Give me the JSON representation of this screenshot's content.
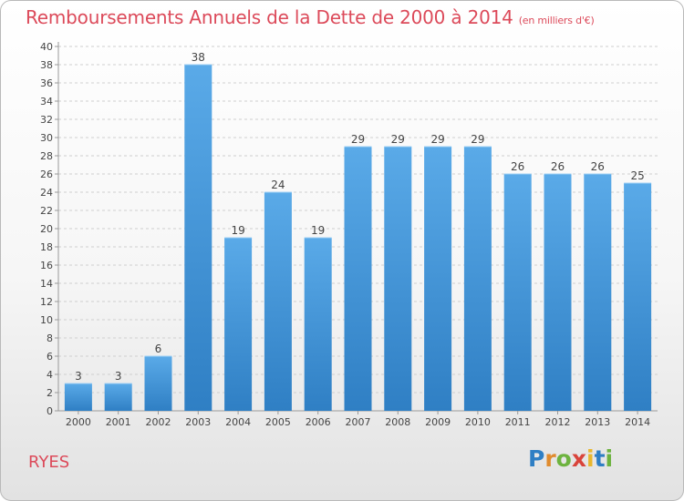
{
  "header": {
    "title": "Remboursements Annuels de la Dette de 2000 à 2014",
    "unit": "(en milliers d'€)"
  },
  "footer": {
    "commune": "RYES",
    "logo": [
      "P",
      "r",
      "o",
      "x",
      "i",
      "t",
      "i"
    ]
  },
  "colors": {
    "title": "#dc4a5a",
    "bar_light": "#5aaae8",
    "bar_dark": "#2f7fc4"
  },
  "chart_data": {
    "type": "bar",
    "title": "Remboursements Annuels de la Dette de 2000 à 2014",
    "subtitle": "(en milliers d'€)",
    "categories": [
      "2000",
      "2001",
      "2002",
      "2003",
      "2004",
      "2005",
      "2006",
      "2007",
      "2008",
      "2009",
      "2010",
      "2011",
      "2012",
      "2013",
      "2014"
    ],
    "values": [
      3,
      3,
      6,
      38,
      19,
      24,
      19,
      29,
      29,
      29,
      29,
      26,
      26,
      26,
      25
    ],
    "ylim": [
      0,
      40
    ],
    "yticks": [
      0,
      2,
      4,
      6,
      8,
      10,
      12,
      14,
      16,
      18,
      20,
      22,
      24,
      26,
      28,
      30,
      32,
      34,
      36,
      38,
      40
    ],
    "grid": true,
    "legend": "none"
  }
}
